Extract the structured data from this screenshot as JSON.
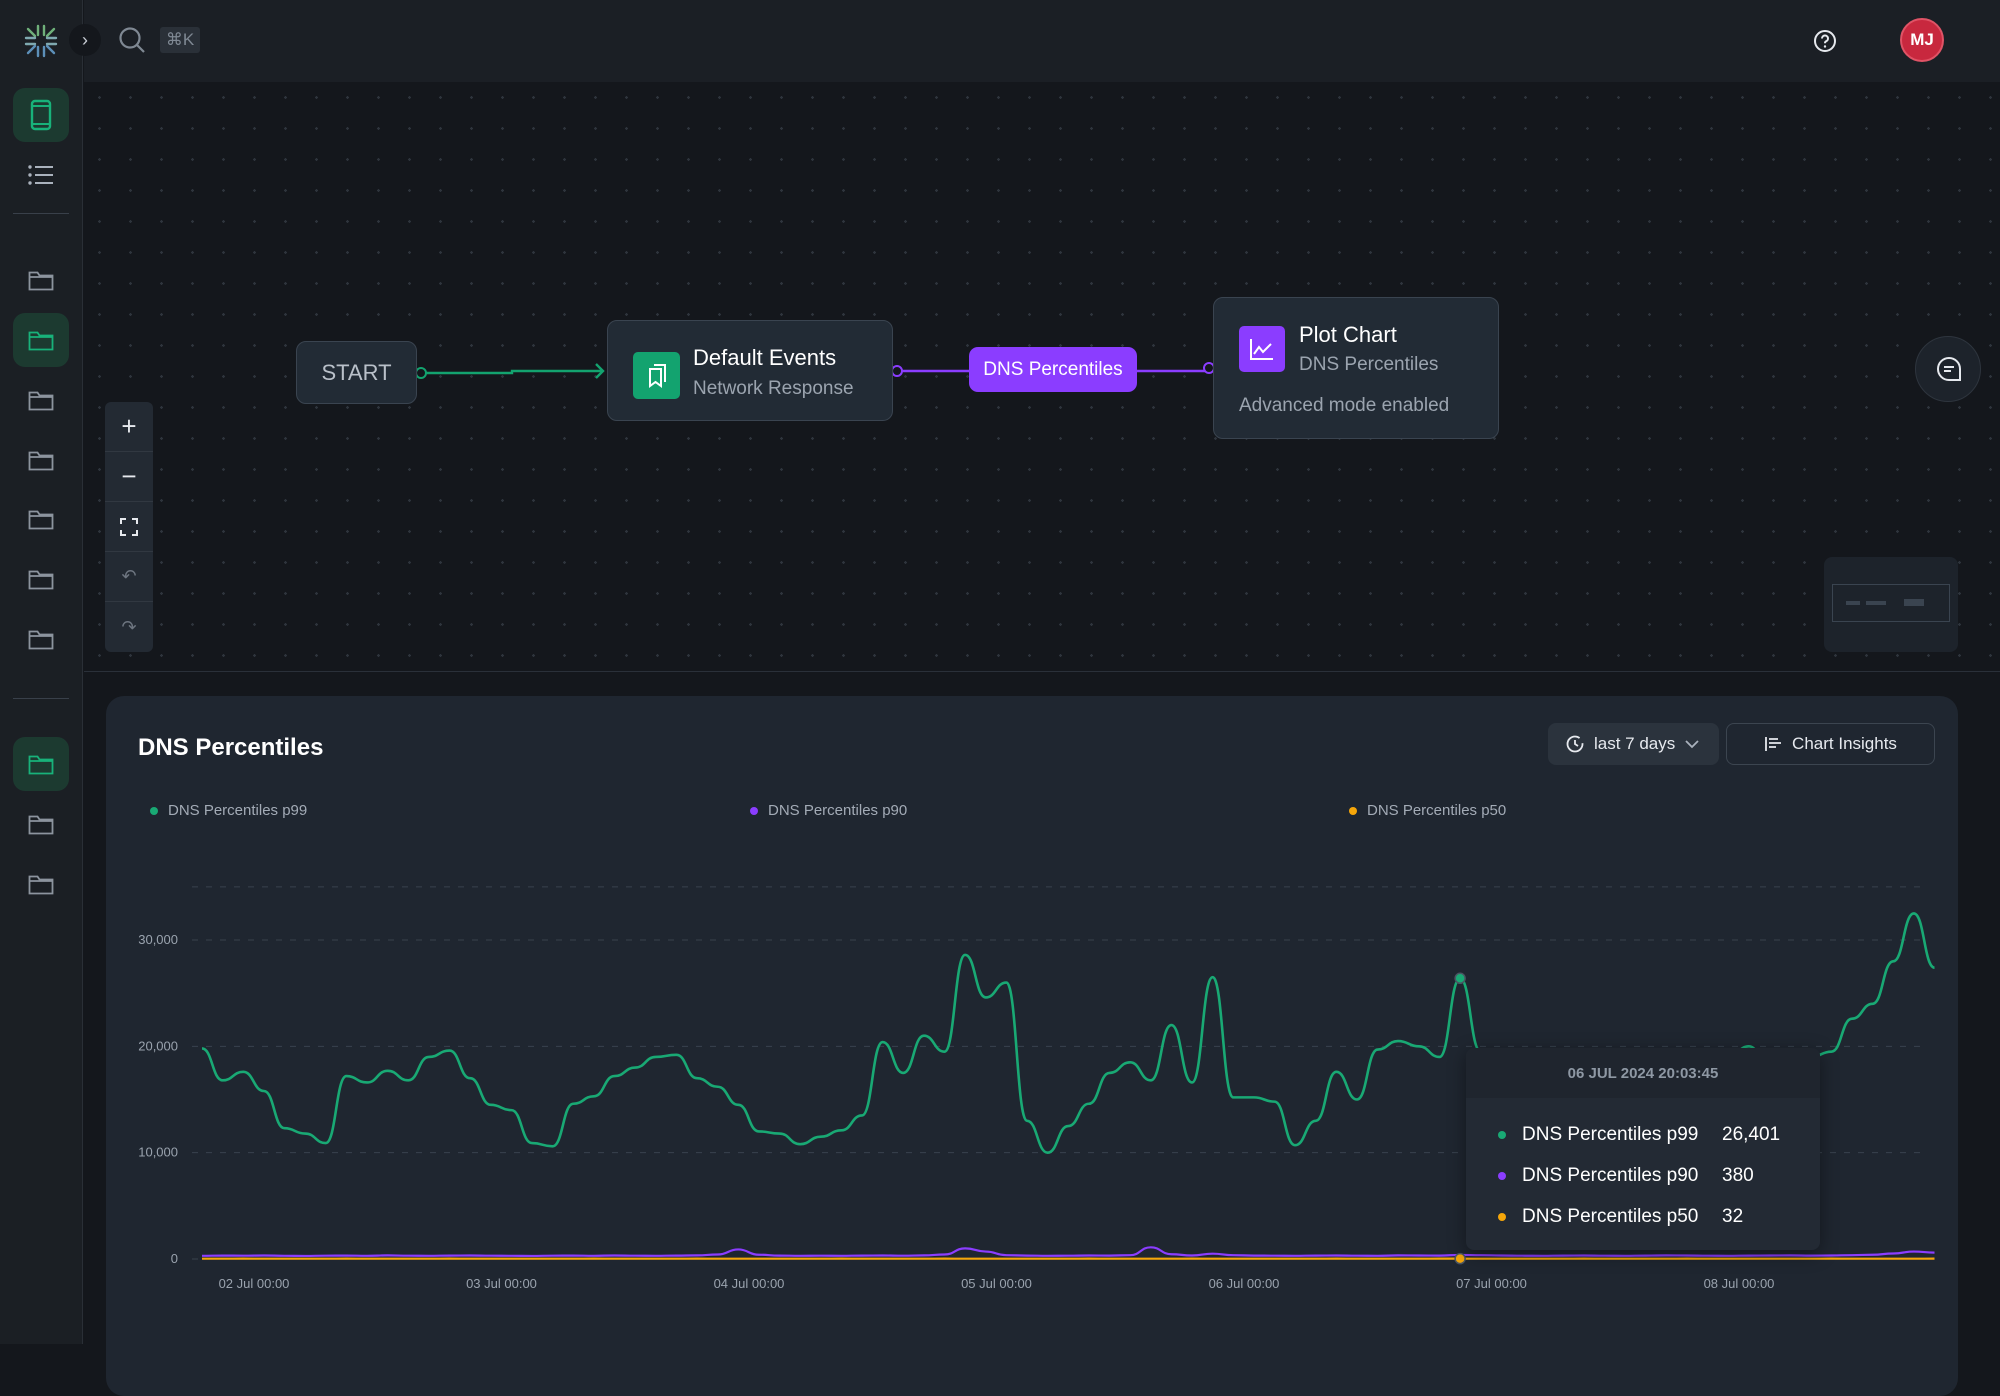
{
  "topbar": {
    "shortcut": "⌘K",
    "avatar_initials": "MJ"
  },
  "flow": {
    "start_label": "START",
    "source": {
      "title": "Default Events",
      "subtitle": "Network Response"
    },
    "edge_label": "DNS Percentiles",
    "plot": {
      "title": "Plot Chart",
      "subtitle": "DNS Percentiles",
      "note": "Advanced mode enabled"
    }
  },
  "panel": {
    "title": "DNS Percentiles",
    "range_label": "last 7 days",
    "insights_label": "Chart Insights"
  },
  "colors": {
    "p99": "#19a974",
    "p90": "#8b3dff",
    "p50": "#f5a60a",
    "accent_green": "#13a36f",
    "accent_purple": "#8b3dff",
    "avatar": "#c8283e"
  },
  "tooltip": {
    "time": "06 JUL 2024 20:03:45",
    "rows": [
      {
        "label": "DNS Percentiles p99",
        "value": "26,401"
      },
      {
        "label": "DNS Percentiles p90",
        "value": "380"
      },
      {
        "label": "DNS Percentiles p50",
        "value": "32"
      }
    ]
  },
  "chart_data": {
    "type": "line",
    "title": "DNS Percentiles",
    "legend_position": "top",
    "grid": true,
    "ylim": [
      0,
      35000
    ],
    "yticks": [
      "0",
      "10,000",
      "20,000",
      "30,000"
    ],
    "xticks": [
      "02 Jul 00:00",
      "03 Jul 00:00",
      "04 Jul 00:00",
      "05 Jul 00:00",
      "06 Jul 00:00",
      "07 Jul 00:00",
      "08 Jul 00:00"
    ],
    "x_start": "2024-07-01 19:00",
    "x_step_hours": 2,
    "series": [
      {
        "name": "DNS Percentiles p99",
        "values": [
          19800,
          16800,
          17600,
          15800,
          12300,
          11800,
          10900,
          17200,
          16600,
          17700,
          16800,
          19000,
          19600,
          17000,
          14500,
          14000,
          10900,
          10600,
          14600,
          15300,
          17200,
          18000,
          19000,
          19200,
          17000,
          16200,
          14500,
          12000,
          11800,
          10800,
          11500,
          12100,
          13500,
          20400,
          17500,
          21000,
          19500,
          28600,
          24600,
          26000,
          13000,
          10000,
          12500,
          14600,
          17500,
          18500,
          16800,
          22000,
          16600,
          26500,
          15200,
          15200,
          14800,
          10700,
          13000,
          17600,
          15000,
          19700,
          20500,
          20000,
          19000,
          26401,
          19500,
          17000,
          15000,
          13000,
          12000,
          14000,
          16000,
          18000,
          17000,
          15000,
          14000,
          16000,
          19000,
          20000,
          18000,
          17000,
          19000,
          19500,
          22600,
          24000,
          28000,
          32500,
          27400
        ]
      },
      {
        "name": "DNS Percentiles p90",
        "values": [
          300,
          320,
          310,
          330,
          300,
          290,
          310,
          320,
          300,
          340,
          310,
          300,
          320,
          330,
          310,
          300,
          290,
          310,
          320,
          300,
          330,
          310,
          300,
          320,
          340,
          420,
          900,
          400,
          320,
          300,
          310,
          300,
          320,
          330,
          310,
          340,
          420,
          1000,
          700,
          360,
          320,
          300,
          310,
          330,
          320,
          360,
          1100,
          450,
          330,
          500,
          360,
          320,
          310,
          300,
          320,
          330,
          310,
          300,
          340,
          330,
          320,
          380,
          360,
          330,
          310,
          300,
          320,
          330,
          310,
          300,
          320,
          340,
          330,
          310,
          300,
          320,
          330,
          340,
          320,
          330,
          360,
          400,
          520,
          700,
          600
        ]
      },
      {
        "name": "DNS Percentiles p50",
        "values": [
          30,
          31,
          32,
          30,
          29,
          31,
          30,
          32,
          31,
          30,
          30,
          31,
          32,
          30,
          31,
          30,
          29,
          31,
          30,
          32,
          31,
          30,
          30,
          31,
          32,
          30,
          31,
          30,
          29,
          31,
          30,
          32,
          31,
          30,
          30,
          31,
          32,
          30,
          31,
          30,
          29,
          31,
          30,
          32,
          31,
          30,
          30,
          31,
          32,
          30,
          31,
          30,
          29,
          31,
          30,
          32,
          31,
          30,
          30,
          31,
          32,
          32,
          31,
          30,
          29,
          31,
          30,
          32,
          31,
          30,
          30,
          31,
          32,
          30,
          31,
          30,
          29,
          31,
          30,
          32,
          31,
          30,
          30,
          31,
          32
        ]
      }
    ]
  }
}
